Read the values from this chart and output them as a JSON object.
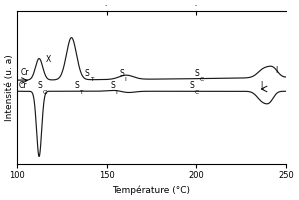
{
  "xlabel": "Température (°C)",
  "ylabel": "Intensité (u. a)",
  "xlim": [
    100,
    250
  ],
  "ylim": [
    -1.0,
    1.0
  ],
  "background_color": "#ffffff",
  "upper_baseline": 0.08,
  "lower_baseline": -0.05,
  "xticks": [
    100,
    150,
    200,
    250
  ],
  "upper_peaks": [
    {
      "mu": 112.5,
      "sigma": 2.0,
      "amp": 0.28
    },
    {
      "mu": 130.5,
      "sigma": 2.8,
      "amp": 0.55
    },
    {
      "mu": 161,
      "sigma": 4.0,
      "amp": 0.055
    },
    {
      "mu": 238,
      "sigma": 3.5,
      "amp": 0.12
    },
    {
      "mu": 243,
      "sigma": 2.5,
      "amp": 0.09
    }
  ],
  "lower_dips": [
    {
      "mu": 112.5,
      "sigma": 1.4,
      "amp": 0.85
    },
    {
      "mu": 161,
      "sigma": 4.0,
      "amp": 0.035
    },
    {
      "mu": 237,
      "sigma": 3.0,
      "amp": 0.13
    },
    {
      "mu": 241,
      "sigma": 2.2,
      "amp": 0.09
    }
  ],
  "line_color": "#1a1a1a",
  "line_width": 0.85
}
